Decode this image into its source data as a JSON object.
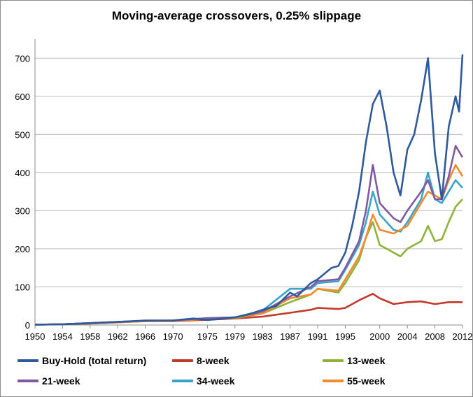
{
  "chart_data": {
    "type": "line",
    "title": "Moving-average crossovers, 0.25% slippage",
    "xlabel": "",
    "ylabel": "",
    "xlim": [
      1950,
      2012
    ],
    "ylim": [
      0,
      750
    ],
    "x_tick_labels": [
      "1950",
      "1954",
      "1958",
      "1962",
      "1966",
      "1970",
      "1975",
      "1979",
      "1983",
      "1987",
      "1991",
      "1995",
      "2000",
      "2004",
      "2008",
      "2012"
    ],
    "y_tick_labels": [
      "0",
      "100",
      "200",
      "300",
      "400",
      "500",
      "600",
      "700"
    ],
    "grid": "horizontal",
    "legend_position": "bottom",
    "series": [
      {
        "name": "Buy-Hold (total return)",
        "color": "#2e5a9c",
        "points": [
          [
            1950,
            1
          ],
          [
            1954,
            2
          ],
          [
            1958,
            5
          ],
          [
            1962,
            8
          ],
          [
            1966,
            12
          ],
          [
            1970,
            12
          ],
          [
            1973,
            17
          ],
          [
            1975,
            13
          ],
          [
            1979,
            20
          ],
          [
            1981,
            28
          ],
          [
            1983,
            40
          ],
          [
            1985,
            50
          ],
          [
            1987,
            85
          ],
          [
            1988,
            75
          ],
          [
            1990,
            110
          ],
          [
            1991,
            120
          ],
          [
            1993,
            150
          ],
          [
            1994,
            155
          ],
          [
            1995,
            190
          ],
          [
            1996,
            260
          ],
          [
            1997,
            350
          ],
          [
            1998,
            480
          ],
          [
            1999,
            580
          ],
          [
            2000,
            615
          ],
          [
            2001,
            520
          ],
          [
            2002,
            400
          ],
          [
            2003,
            340
          ],
          [
            2004,
            460
          ],
          [
            2005,
            500
          ],
          [
            2006,
            590
          ],
          [
            2007,
            700
          ],
          [
            2008,
            450
          ],
          [
            2009,
            330
          ],
          [
            2010,
            520
          ],
          [
            2011,
            600
          ],
          [
            2011.5,
            560
          ],
          [
            2012,
            710
          ]
        ]
      },
      {
        "name": "8-week",
        "color": "#c0392b",
        "points": [
          [
            1950,
            1
          ],
          [
            1954,
            2
          ],
          [
            1958,
            4
          ],
          [
            1962,
            7
          ],
          [
            1966,
            10
          ],
          [
            1970,
            10
          ],
          [
            1975,
            14
          ],
          [
            1979,
            17
          ],
          [
            1983,
            22
          ],
          [
            1987,
            32
          ],
          [
            1990,
            40
          ],
          [
            1991,
            45
          ],
          [
            1994,
            42
          ],
          [
            1995,
            45
          ],
          [
            1997,
            65
          ],
          [
            1999,
            82
          ],
          [
            2000,
            70
          ],
          [
            2002,
            55
          ],
          [
            2004,
            60
          ],
          [
            2006,
            62
          ],
          [
            2008,
            55
          ],
          [
            2010,
            60
          ],
          [
            2012,
            60
          ]
        ]
      },
      {
        "name": "13-week",
        "color": "#8db33a",
        "points": [
          [
            1950,
            1
          ],
          [
            1954,
            2
          ],
          [
            1958,
            4
          ],
          [
            1962,
            7
          ],
          [
            1966,
            10
          ],
          [
            1970,
            11
          ],
          [
            1975,
            16
          ],
          [
            1979,
            18
          ],
          [
            1983,
            30
          ],
          [
            1987,
            60
          ],
          [
            1990,
            80
          ],
          [
            1991,
            95
          ],
          [
            1994,
            85
          ],
          [
            1995,
            110
          ],
          [
            1997,
            170
          ],
          [
            1998,
            230
          ],
          [
            1999,
            270
          ],
          [
            2000,
            210
          ],
          [
            2002,
            190
          ],
          [
            2003,
            180
          ],
          [
            2004,
            200
          ],
          [
            2006,
            220
          ],
          [
            2007,
            260
          ],
          [
            2008,
            220
          ],
          [
            2009,
            225
          ],
          [
            2010,
            270
          ],
          [
            2011,
            310
          ],
          [
            2012,
            330
          ]
        ]
      },
      {
        "name": "21-week",
        "color": "#7f5aa2",
        "points": [
          [
            1950,
            1
          ],
          [
            1954,
            2
          ],
          [
            1958,
            5
          ],
          [
            1962,
            8
          ],
          [
            1966,
            11
          ],
          [
            1970,
            12
          ],
          [
            1975,
            18
          ],
          [
            1979,
            20
          ],
          [
            1983,
            35
          ],
          [
            1987,
            75
          ],
          [
            1990,
            100
          ],
          [
            1991,
            115
          ],
          [
            1994,
            120
          ],
          [
            1995,
            150
          ],
          [
            1997,
            220
          ],
          [
            1998,
            300
          ],
          [
            1999,
            420
          ],
          [
            2000,
            320
          ],
          [
            2002,
            280
          ],
          [
            2003,
            270
          ],
          [
            2004,
            300
          ],
          [
            2006,
            350
          ],
          [
            2007,
            380
          ],
          [
            2008,
            330
          ],
          [
            2009,
            330
          ],
          [
            2010,
            390
          ],
          [
            2011,
            470
          ],
          [
            2012,
            440
          ]
        ]
      },
      {
        "name": "34-week",
        "color": "#3aa3c8",
        "points": [
          [
            1950,
            1
          ],
          [
            1954,
            2
          ],
          [
            1958,
            5
          ],
          [
            1962,
            8
          ],
          [
            1966,
            11
          ],
          [
            1970,
            12
          ],
          [
            1975,
            18
          ],
          [
            1979,
            20
          ],
          [
            1983,
            38
          ],
          [
            1987,
            95
          ],
          [
            1990,
            95
          ],
          [
            1991,
            110
          ],
          [
            1994,
            115
          ],
          [
            1995,
            145
          ],
          [
            1997,
            210
          ],
          [
            1998,
            270
          ],
          [
            1999,
            350
          ],
          [
            2000,
            290
          ],
          [
            2002,
            250
          ],
          [
            2003,
            245
          ],
          [
            2004,
            270
          ],
          [
            2006,
            330
          ],
          [
            2007,
            400
          ],
          [
            2008,
            330
          ],
          [
            2009,
            320
          ],
          [
            2010,
            350
          ],
          [
            2011,
            380
          ],
          [
            2012,
            360
          ]
        ]
      },
      {
        "name": "55-week",
        "color": "#f28a2e",
        "points": [
          [
            1950,
            1
          ],
          [
            1954,
            2
          ],
          [
            1958,
            4
          ],
          [
            1962,
            7
          ],
          [
            1966,
            10
          ],
          [
            1970,
            11
          ],
          [
            1975,
            16
          ],
          [
            1979,
            19
          ],
          [
            1983,
            30
          ],
          [
            1987,
            70
          ],
          [
            1990,
            80
          ],
          [
            1991,
            95
          ],
          [
            1994,
            90
          ],
          [
            1995,
            120
          ],
          [
            1997,
            180
          ],
          [
            1998,
            230
          ],
          [
            1999,
            290
          ],
          [
            2000,
            250
          ],
          [
            2002,
            240
          ],
          [
            2003,
            250
          ],
          [
            2004,
            260
          ],
          [
            2006,
            320
          ],
          [
            2007,
            350
          ],
          [
            2008,
            340
          ],
          [
            2009,
            330
          ],
          [
            2010,
            380
          ],
          [
            2011,
            420
          ],
          [
            2012,
            390
          ]
        ]
      }
    ]
  }
}
